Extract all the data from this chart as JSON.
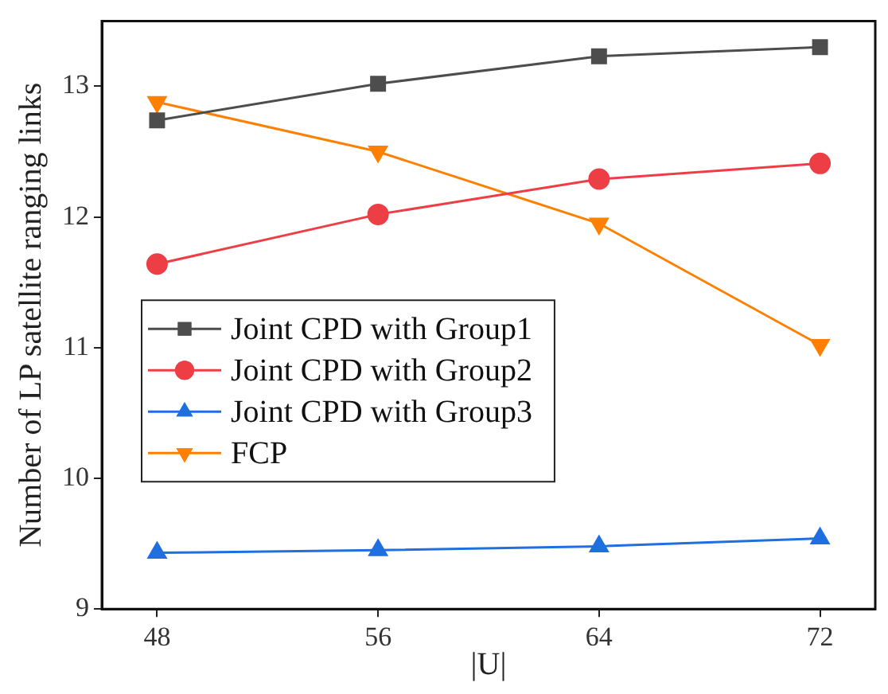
{
  "chart_data": {
    "type": "line",
    "xlabel": "|U|",
    "ylabel": "Number of LP satellite ranging links",
    "x": [
      48,
      56,
      64,
      72
    ],
    "xlim": [
      46,
      74
    ],
    "xticks": [
      48,
      56,
      64,
      72
    ],
    "ylim": [
      9,
      13.5
    ],
    "yticks": [
      9,
      10,
      11,
      12,
      13
    ],
    "grid": false,
    "legend": "bottom left",
    "series": [
      {
        "name": "Joint CPD with Group1",
        "color": "#4d4d4d",
        "marker": "square",
        "values": [
          12.74,
          13.02,
          13.23,
          13.3
        ]
      },
      {
        "name": "Joint CPD with Group2",
        "color": "#ee3e45",
        "marker": "circle",
        "values": [
          11.64,
          12.02,
          12.29,
          12.41
        ]
      },
      {
        "name": "Joint CPD with Group3",
        "color": "#1f6fe0",
        "marker": "triangle",
        "values": [
          9.43,
          9.45,
          9.48,
          9.54
        ]
      },
      {
        "name": "FCP",
        "color": "#ff8000",
        "marker": "triangle-down",
        "values": [
          12.88,
          12.5,
          11.95,
          11.02
        ]
      }
    ]
  }
}
